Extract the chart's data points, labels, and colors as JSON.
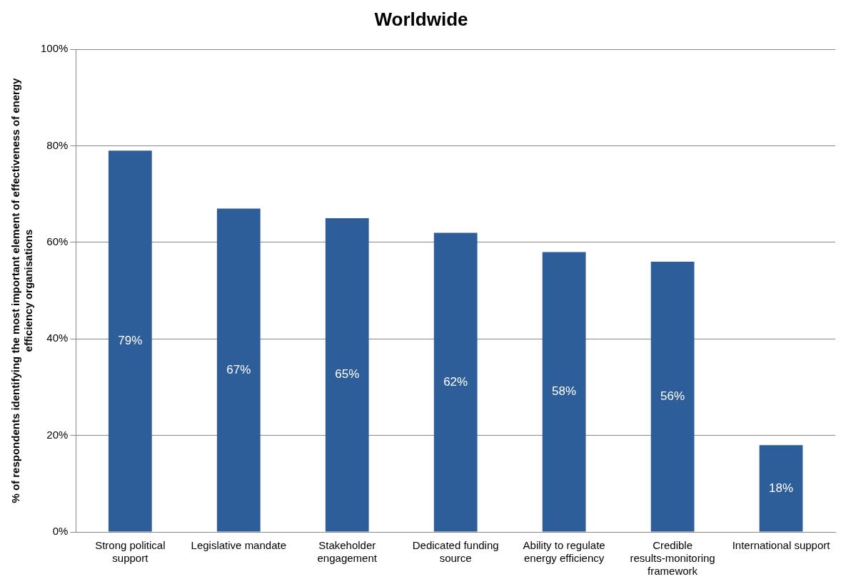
{
  "chart_data": {
    "type": "bar",
    "title": "Worldwide",
    "ylabel": "% of respondents identifying the most important element of effectiveness of energy efficiency organisations",
    "categories": [
      "Strong political support",
      "Legislative mandate",
      "Stakeholder engagement",
      "Dedicated funding source",
      "Ability to regulate energy efficiency",
      "Credible results-monitoring framework",
      "International support"
    ],
    "values": [
      79,
      67,
      65,
      62,
      58,
      56,
      18
    ],
    "value_labels": [
      "79%",
      "67%",
      "65%",
      "62%",
      "58%",
      "56%",
      "18%"
    ],
    "color": "#2e5e99",
    "ylim": [
      0,
      100
    ],
    "yticks": [
      {
        "value": 0,
        "label": "0%"
      },
      {
        "value": 20,
        "label": "20%"
      },
      {
        "value": 40,
        "label": "40%"
      },
      {
        "value": 60,
        "label": "60%"
      },
      {
        "value": 80,
        "label": "80%"
      },
      {
        "value": 100,
        "label": "100%"
      }
    ],
    "grid": "y",
    "legend": false
  }
}
